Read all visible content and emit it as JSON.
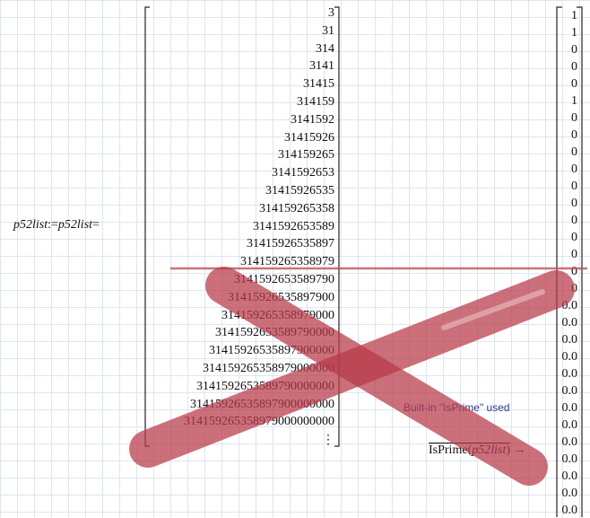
{
  "definition": {
    "name": "p52list",
    "assign": ":=",
    "ref": "p52list",
    "eval": "="
  },
  "matrix": {
    "rows": [
      "3",
      "31",
      "314",
      "3141",
      "31415",
      "314159",
      "3141592",
      "31415926",
      "314159265",
      "3141592653",
      "31415926535",
      "314159265358",
      "3141592653589",
      "31415926535897",
      "314159265358979",
      "3141592653589790",
      "31415926535897900",
      "314159265358979000",
      "3141592653589790000",
      "31415926535897900000",
      "314159265358979000000",
      "3141592653589790000000",
      "31415926535897900000000",
      "314159265358979000000000",
      "⋮"
    ]
  },
  "result": {
    "rows": [
      "1",
      "1",
      "0",
      "0",
      "0",
      "1",
      "0",
      "0",
      "0",
      "0",
      "0",
      "0",
      "0",
      "0",
      "0",
      "0",
      "0",
      "0.0",
      "0.0",
      "0.0",
      "0.0",
      "0.0",
      "0.0",
      "0.0",
      "0.0",
      "0.0",
      "0.0",
      "0.0",
      "0.0",
      "0.0"
    ]
  },
  "annotation": "Built-in \"IsPrime\" used",
  "expression": {
    "func": "IsPrime",
    "open": "(",
    "arg": "p52list",
    "close": ")",
    "arrow": "→"
  }
}
